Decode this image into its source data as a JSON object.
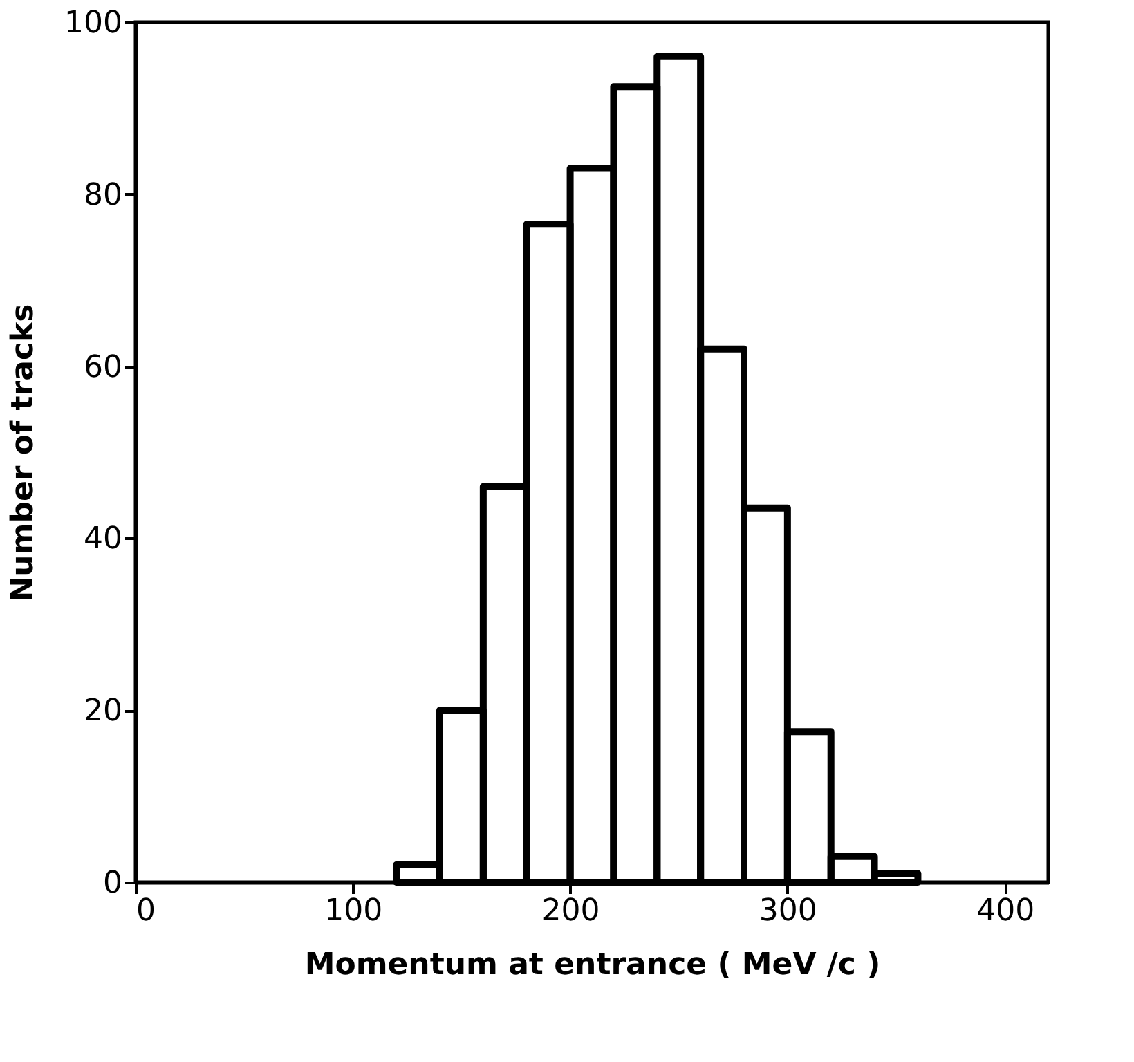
{
  "chart_data": {
    "type": "histogram",
    "xlabel": "Momentum  at entrance       ( MeV /c )",
    "ylabel": "Number of tracks",
    "bins": [
      120,
      140,
      160,
      180,
      200,
      220,
      240,
      260,
      280,
      300,
      320,
      340,
      360
    ],
    "values": [
      2,
      20,
      46,
      76.5,
      83,
      92.5,
      96,
      62,
      43.5,
      17.5,
      3,
      1
    ],
    "color": "#000000",
    "xlim": [
      0,
      420
    ],
    "xticks": [
      0,
      100,
      200,
      300,
      400
    ],
    "ylim": [
      0,
      100
    ],
    "yticks": [
      0,
      20,
      40,
      60,
      80,
      100
    ],
    "grid": false
  }
}
